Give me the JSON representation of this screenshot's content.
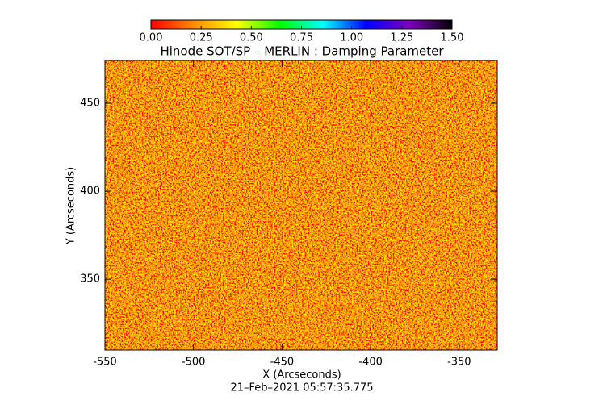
{
  "chart_data": {
    "type": "image-map",
    "title": "Hinode SOT/SP – MERLIN : Damping Parameter",
    "x_label": "X (Arcseconds)",
    "y_label": "Y (Arcseconds)",
    "timestamp": "21–Feb–2021 05:57:35.775",
    "xlim": [
      -550,
      -328.5
    ],
    "ylim": [
      309.7,
      474.3
    ],
    "xticks": [
      -550,
      -500,
      -450,
      -400,
      -350
    ],
    "yticks": [
      350,
      400,
      450
    ],
    "colorbar": {
      "lim": [
        0,
        1.5
      ],
      "ticks": [
        {
          "value": 0,
          "label": "0.00"
        },
        {
          "value": 0.25,
          "label": "0.25"
        },
        {
          "value": 0.5,
          "label": "0.50"
        },
        {
          "value": 0.75,
          "label": "0.75"
        },
        {
          "value": 1,
          "label": "1.00"
        },
        {
          "value": 1.25,
          "label": "1.25"
        },
        {
          "value": 1.5,
          "label": "1.50"
        }
      ],
      "colormap": [
        "#ff0000",
        "#ff8c00",
        "#ffff00",
        "#00ff00",
        "#00ffff",
        "#0000ff",
        "#8000c0",
        "#000000"
      ]
    }
  }
}
